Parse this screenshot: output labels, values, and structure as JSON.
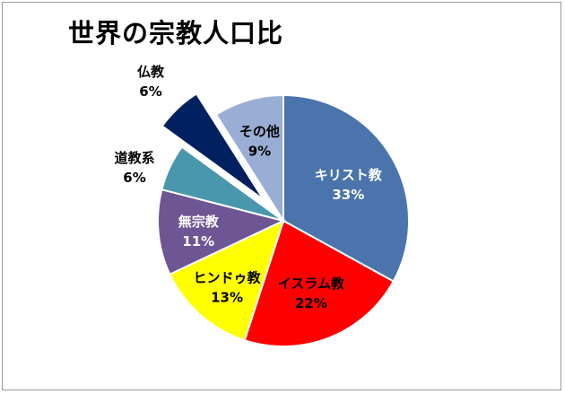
{
  "chart_data": {
    "type": "pie",
    "title": "世界の宗教人口比",
    "start_angle_deg": 0,
    "direction": "clockwise",
    "slices": [
      {
        "label": "キリスト教",
        "value": 33,
        "value_label": "33%",
        "color": "#4a74ab",
        "label_color": "#ffffff",
        "exploded": false,
        "label_outside": false
      },
      {
        "label": "イスラム教",
        "value": 22,
        "value_label": "22%",
        "color": "#ff0000",
        "label_color": "#000000",
        "exploded": false,
        "label_outside": false
      },
      {
        "label": "ヒンドゥ教",
        "value": 13,
        "value_label": "13%",
        "color": "#ffff00",
        "label_color": "#000000",
        "exploded": false,
        "label_outside": false
      },
      {
        "label": "無宗教",
        "value": 11,
        "value_label": "11%",
        "color": "#6e5594",
        "label_color": "#ffffff",
        "exploded": false,
        "label_outside": false
      },
      {
        "label": "道教系",
        "value": 6,
        "value_label": "6%",
        "color": "#4997ad",
        "label_color": "#000000",
        "exploded": false,
        "label_outside": true
      },
      {
        "label": "仏教",
        "value": 6,
        "value_label": "6%",
        "color": "#002060",
        "label_color": "#000000",
        "exploded": true,
        "label_outside": true
      },
      {
        "label": "その他",
        "value": 9,
        "value_label": "9%",
        "color": "#9aaed5",
        "label_color": "#000000",
        "exploded": false,
        "label_outside": false
      }
    ]
  }
}
